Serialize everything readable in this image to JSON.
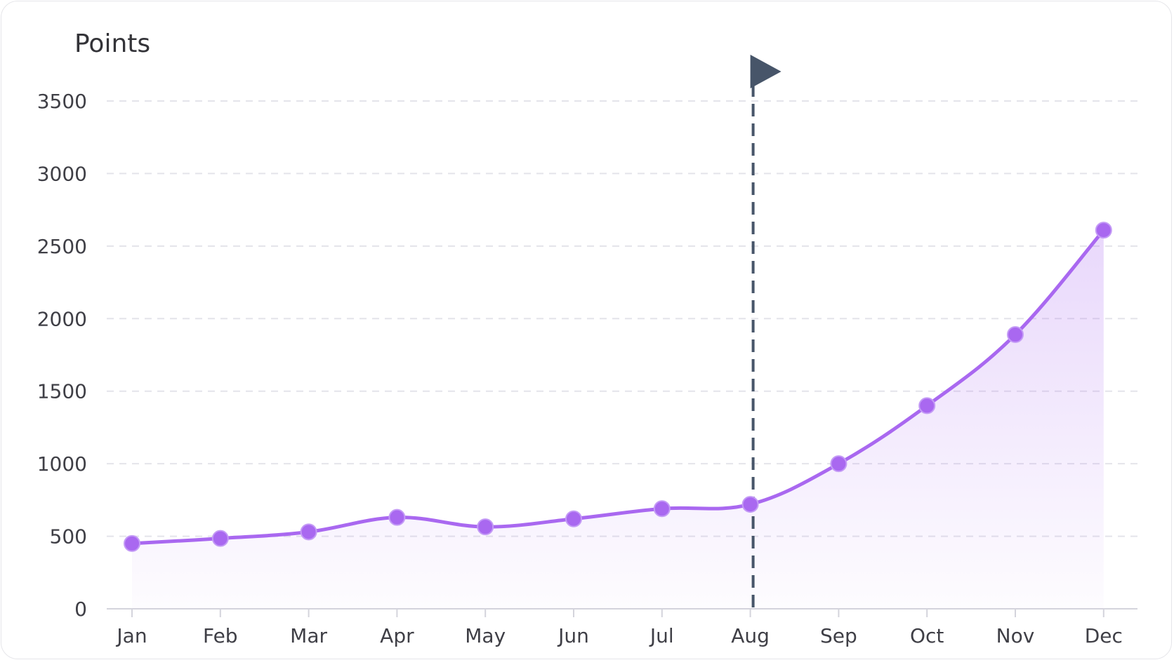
{
  "chart_data": {
    "type": "area",
    "ylabel": "Points",
    "categories": [
      "Jan",
      "Feb",
      "Mar",
      "Apr",
      "May",
      "Jun",
      "Jul",
      "Aug",
      "Sep",
      "Oct",
      "Nov",
      "Dec"
    ],
    "values": [
      450,
      485,
      530,
      630,
      565,
      620,
      690,
      720,
      1000,
      1400,
      1890,
      2610
    ],
    "ylim": [
      0,
      3500
    ],
    "yticks": [
      0,
      500,
      1000,
      1500,
      2000,
      2500,
      3000,
      3500
    ],
    "grid": true,
    "marker": {
      "category": "Aug",
      "style": "dashed-line-with-flag"
    },
    "colors": {
      "line": "#a968f0",
      "fill": "#a968f0",
      "marker": "#475569",
      "grid": "#e4e4ea"
    }
  }
}
